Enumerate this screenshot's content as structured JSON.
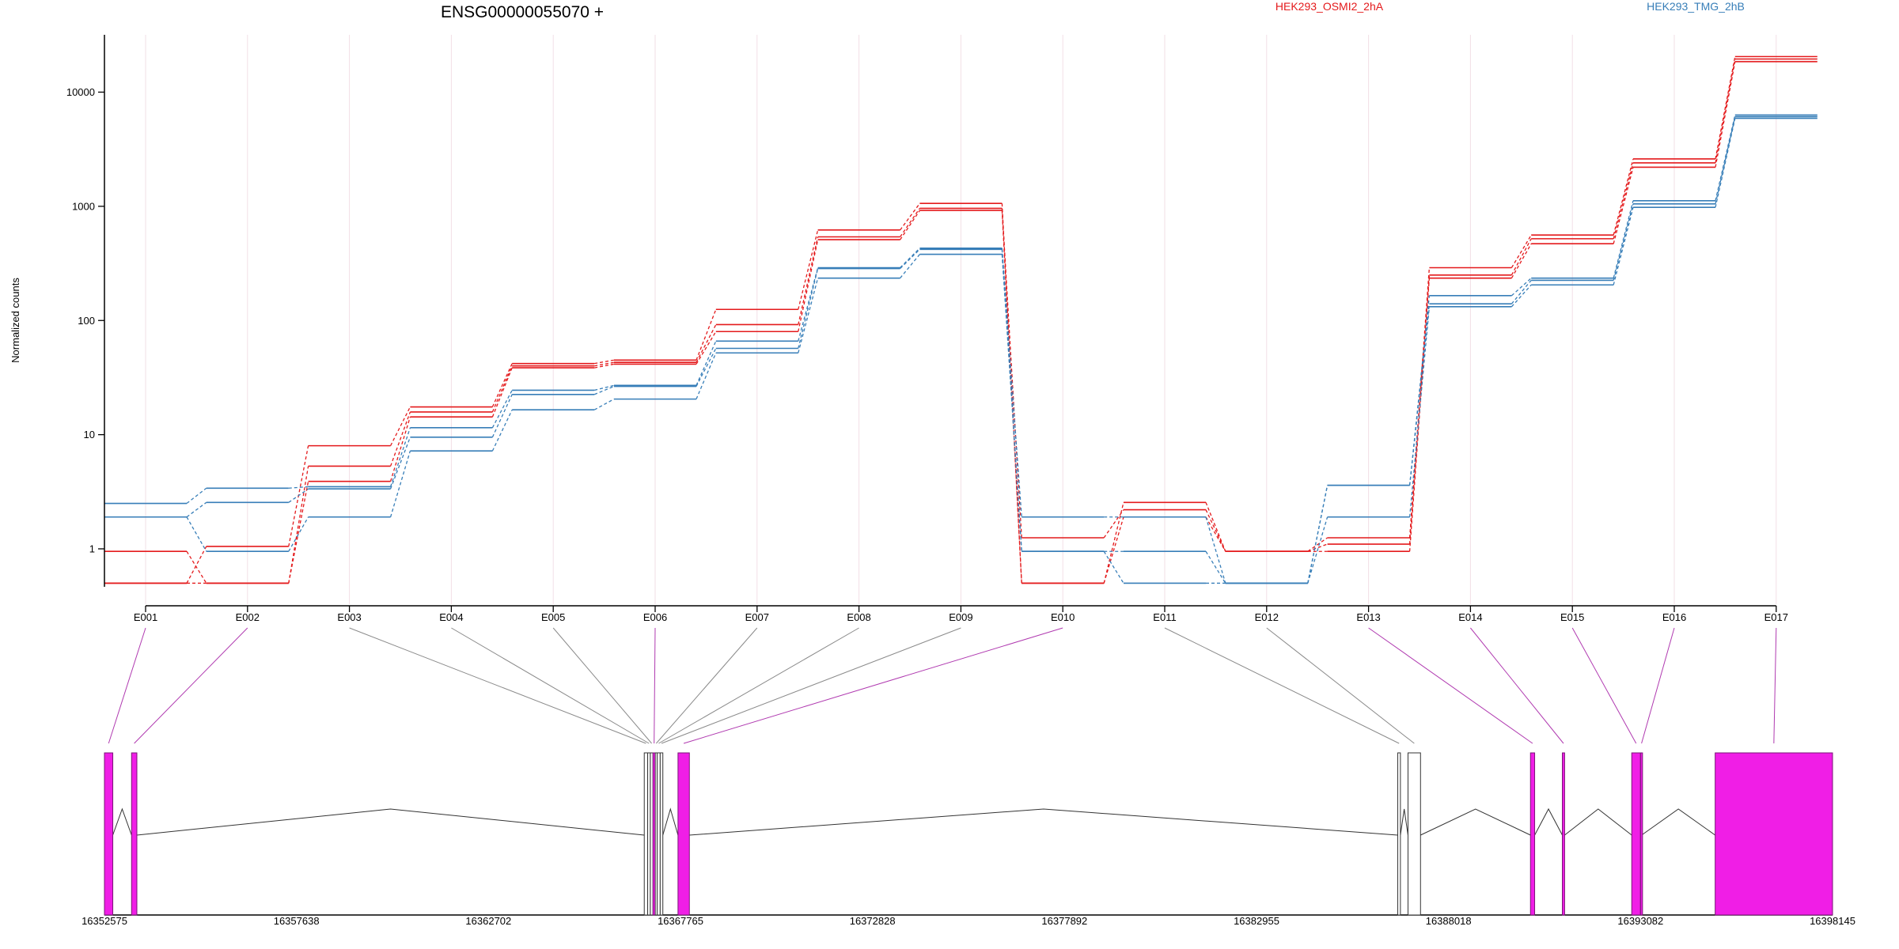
{
  "chart_data": {
    "type": "line",
    "title": "ENSG00000055070 +",
    "ylabel": "Normalized counts",
    "y_scale": "log",
    "y_ticks": [
      1,
      10,
      100,
      1000,
      10000
    ],
    "y_tick_labels": [
      "1",
      "10",
      "100",
      "1000",
      "10000"
    ],
    "ylim": [
      0.5,
      30000
    ],
    "categories": [
      "E001",
      "E002",
      "E003",
      "E004",
      "E005",
      "E006",
      "E007",
      "E008",
      "E009",
      "E010",
      "E011",
      "E012",
      "E013",
      "E014",
      "E015",
      "E016",
      "E017"
    ],
    "groups": [
      {
        "name": "HEK293_OSMI2_2hA",
        "color": "#e41a1c"
      },
      {
        "name": "HEK293_TMG_2hB",
        "color": "#377eb8"
      }
    ],
    "series": [
      {
        "group": 0,
        "values": [
          0.5,
          1.05,
          8,
          17.5,
          42,
          45,
          125,
          620,
          1060,
          0.5,
          2.55,
          0.95,
          1.25,
          290,
          560,
          2600,
          20500
        ]
      },
      {
        "group": 0,
        "values": [
          0.95,
          0.5,
          5.3,
          15.8,
          40,
          43,
          92,
          540,
          960,
          1.25,
          2.2,
          0.95,
          1.1,
          250,
          520,
          2400,
          19500
        ]
      },
      {
        "group": 0,
        "values": [
          0.5,
          0.5,
          3.9,
          14.3,
          38.5,
          41.5,
          80,
          510,
          920,
          0.5,
          1.9,
          0.95,
          0.95,
          235,
          470,
          2200,
          18500
        ]
      },
      {
        "group": 1,
        "values": [
          2.5,
          3.4,
          3.5,
          11.5,
          24.5,
          27,
          66,
          290,
          430,
          1.9,
          1.9,
          0.5,
          3.6,
          165,
          235,
          1120,
          6300
        ]
      },
      {
        "group": 1,
        "values": [
          1.9,
          2.55,
          3.35,
          9.5,
          22.5,
          26.5,
          57,
          285,
          420,
          0.95,
          0.95,
          0.5,
          3.6,
          140,
          225,
          1050,
          6100
        ]
      },
      {
        "group": 1,
        "values": [
          1.9,
          0.95,
          1.9,
          7.2,
          16.5,
          20.5,
          52,
          235,
          380,
          0.95,
          0.5,
          0.5,
          1.9,
          132,
          205,
          980,
          5900
        ]
      }
    ],
    "gene_model": {
      "start": 16352575,
      "end": 16398145,
      "x_ticks": [
        16352575,
        16357638,
        16362702,
        16367765,
        16372828,
        16377892,
        16382955,
        16388018,
        16393082,
        16398145
      ],
      "x_tick_labels": [
        "16352575",
        "16357638",
        "16362702",
        "16367765",
        "16372828",
        "16377892",
        "16382955",
        "16388018",
        "16393082",
        "16398145"
      ],
      "exons": [
        {
          "id": "E001",
          "start": 16352575,
          "end": 16352795,
          "status": "significant"
        },
        {
          "id": "E002",
          "start": 16353290,
          "end": 16353430,
          "status": "significant"
        },
        {
          "id": "E003",
          "start": 16366810,
          "end": 16366900,
          "status": "tested"
        },
        {
          "id": "E004",
          "start": 16366900,
          "end": 16366970,
          "status": "tested"
        },
        {
          "id": "E005",
          "start": 16366970,
          "end": 16367040,
          "status": "tested"
        },
        {
          "id": "E006",
          "start": 16367040,
          "end": 16367100,
          "status": "significant"
        },
        {
          "id": "E007",
          "start": 16367100,
          "end": 16367150,
          "status": "tested"
        },
        {
          "id": "E008",
          "start": 16367150,
          "end": 16367230,
          "status": "tested"
        },
        {
          "id": "E009",
          "start": 16367230,
          "end": 16367300,
          "status": "tested"
        },
        {
          "id": "E010",
          "start": 16367700,
          "end": 16368000,
          "status": "significant"
        },
        {
          "id": "E011",
          "start": 16386680,
          "end": 16386750,
          "status": "tested"
        },
        {
          "id": "E012",
          "start": 16386950,
          "end": 16387280,
          "status": "tested"
        },
        {
          "id": "E013",
          "start": 16390180,
          "end": 16390290,
          "status": "significant"
        },
        {
          "id": "E014",
          "start": 16391020,
          "end": 16391080,
          "status": "significant"
        },
        {
          "id": "E015",
          "start": 16392850,
          "end": 16393080,
          "status": "significant"
        },
        {
          "id": "E016",
          "start": 16393082,
          "end": 16393110,
          "status": "significant"
        },
        {
          "id": "E017",
          "start": 16395050,
          "end": 16398145,
          "status": "significant"
        }
      ]
    },
    "colors": {
      "significant_exon": "#f01ee6",
      "connector": "#b03ab0",
      "connector_plain": "#8a8a8a",
      "grid": "#f2dfe6",
      "axis": "#000000"
    }
  }
}
